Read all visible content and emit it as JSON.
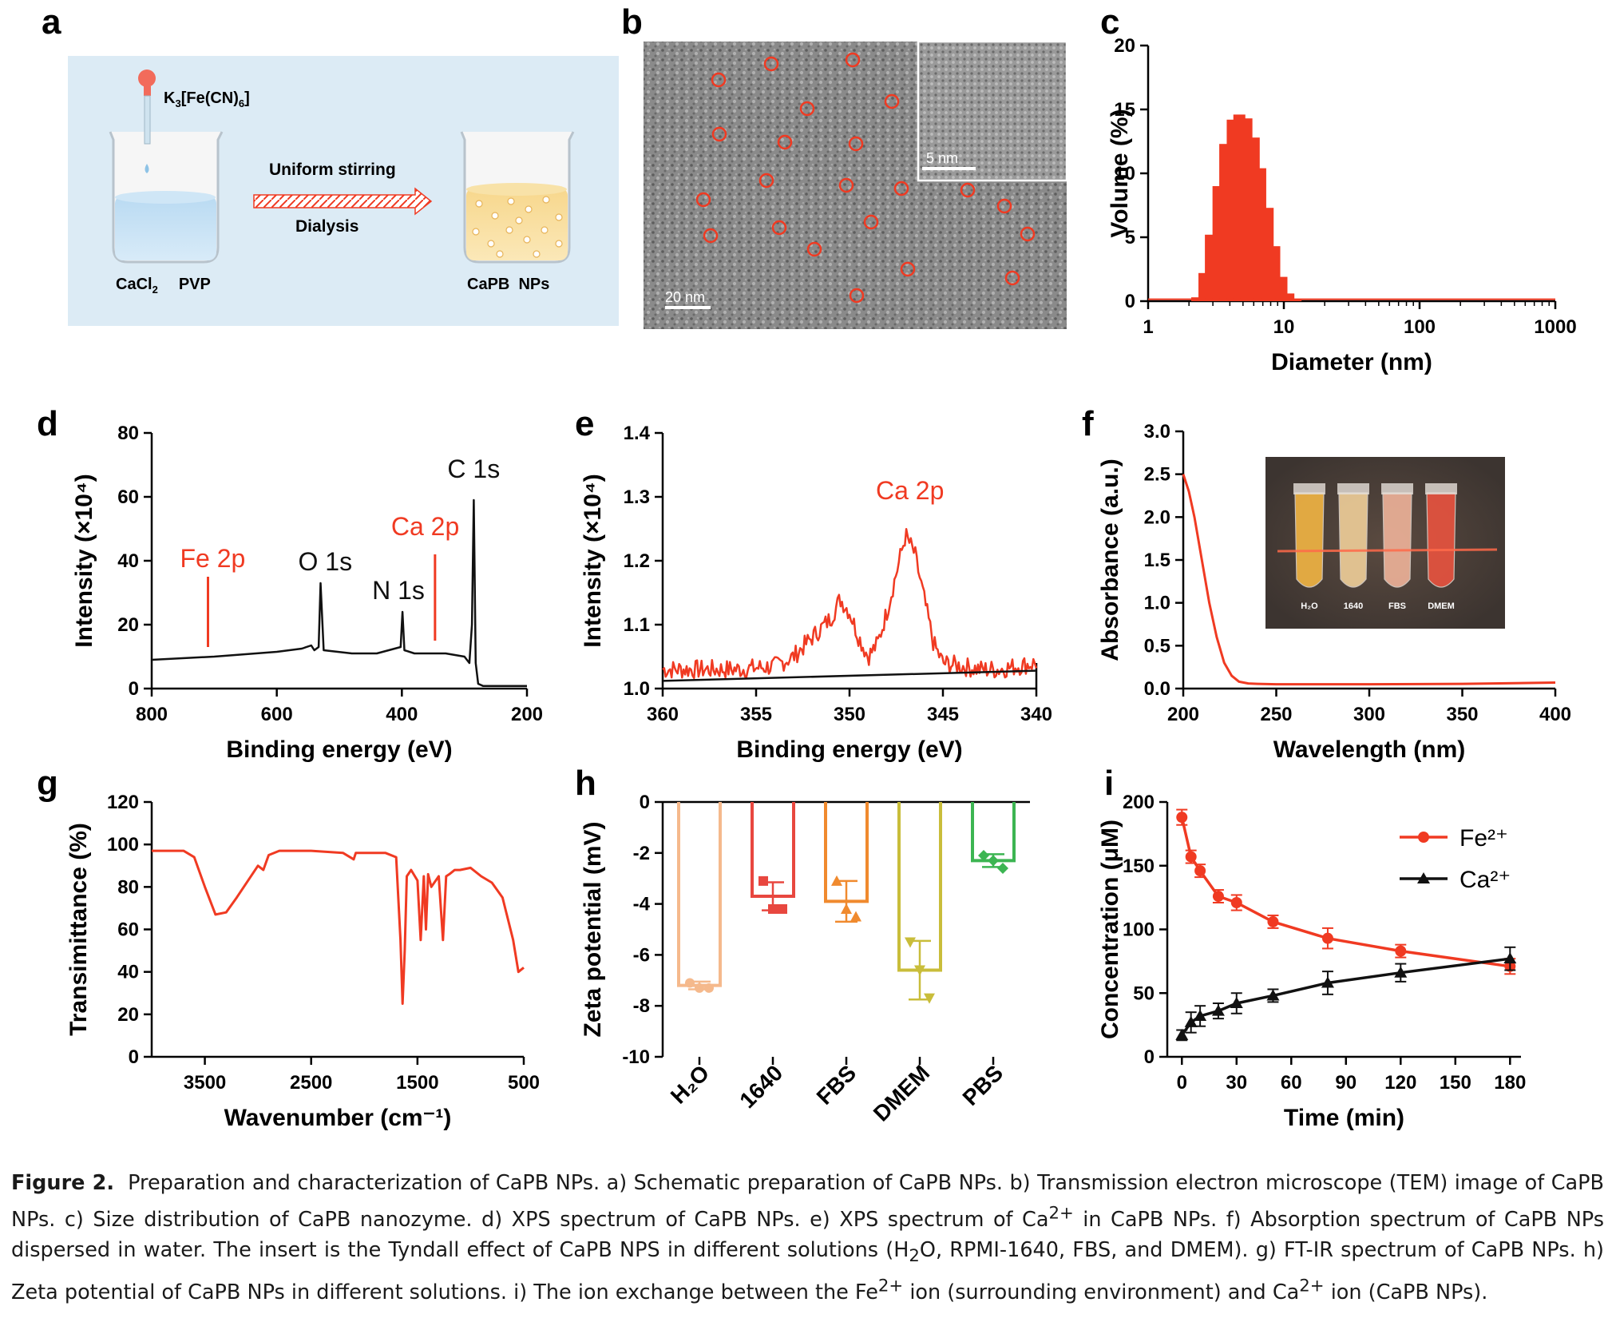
{
  "panel_letters": [
    "a",
    "b",
    "c",
    "d",
    "e",
    "f",
    "g",
    "h",
    "i"
  ],
  "panel_a": {
    "reagent_main": "K",
    "reagent_sub1": "3",
    "reagent_mid": "[Fe(CN)",
    "reagent_sub2": "6",
    "reagent_end": "]",
    "step1": "Uniform stirring",
    "step2": "Dialysis",
    "left_label_main": "CaCl",
    "left_label_sub": "2",
    "left_label_end": "PVP",
    "right_label": "CaPB  NPs"
  },
  "panel_b": {
    "scale_main": "20 nm",
    "scale_inset": "5 nm"
  },
  "colors": {
    "red": "#f03a22",
    "black": "#111111",
    "panel_a_bg": "#dcebf5"
  },
  "chart_data": [
    {
      "panel": "c",
      "type": "bar",
      "xlabel": "Diameter (nm)",
      "ylabel": "Volume (%)",
      "xscale": "log",
      "xlim": [
        1,
        1000
      ],
      "ylim": [
        0,
        20
      ],
      "xticks": [
        "1",
        "10",
        "100",
        "1000"
      ],
      "yticks": [
        "0",
        "5",
        "10",
        "15",
        "20"
      ],
      "x": [
        2.3,
        2.6,
        2.9,
        3.3,
        3.7,
        4.2,
        4.7,
        5.3,
        6.0,
        6.7,
        7.6,
        8.5,
        9.6,
        10.8,
        12.2
      ],
      "values": [
        0.3,
        2.2,
        5.2,
        9.0,
        12.3,
        14.2,
        14.6,
        14.3,
        12.8,
        10.4,
        7.3,
        4.3,
        1.9,
        0.6,
        0.1
      ]
    },
    {
      "panel": "d",
      "type": "line",
      "xlabel": "Binding energy (eV)",
      "ylabel": "Intensity (×10⁴)",
      "xlim": [
        800,
        200
      ],
      "ylim": [
        0,
        80
      ],
      "xticks": [
        "800",
        "600",
        "400",
        "200"
      ],
      "yticks": [
        "0",
        "20",
        "40",
        "60",
        "80"
      ],
      "x": [
        800,
        700,
        600,
        560,
        545,
        540,
        533,
        530,
        525,
        480,
        440,
        402,
        399,
        396,
        380,
        330,
        300,
        292,
        288,
        285,
        282,
        278,
        270,
        200
      ],
      "y": [
        9,
        10,
        11.5,
        12.5,
        13.5,
        12,
        13,
        33,
        12,
        11,
        11,
        13,
        24,
        12,
        11,
        11,
        10,
        8,
        20,
        59,
        8,
        1.5,
        0.8,
        0.8
      ],
      "annotations": [
        {
          "text": "Fe 2p",
          "x": 710,
          "color": "#f03a22",
          "line_from": 13,
          "line_to": 35
        },
        {
          "text": "O 1s",
          "x": 530,
          "color": "#111111"
        },
        {
          "text": "N 1s",
          "x": 399,
          "color": "#111111"
        },
        {
          "text": "Ca 2p",
          "x": 347,
          "color": "#f03a22",
          "line_from": 15,
          "line_to": 42
        },
        {
          "text": "C 1s",
          "x": 285,
          "color": "#111111"
        }
      ]
    },
    {
      "panel": "e",
      "type": "line",
      "xlabel": "Binding energy (eV)",
      "ylabel": "Intensity (×10⁴)",
      "xlim": [
        360,
        340
      ],
      "ylim": [
        1.0,
        1.4
      ],
      "xticks": [
        "360",
        "355",
        "350",
        "345",
        "340"
      ],
      "yticks": [
        "1.0",
        "1.1",
        "1.2",
        "1.3",
        "1.4"
      ],
      "series": [
        {
          "color": "#f03a22",
          "x": [
            360,
            358,
            356,
            354,
            353,
            352,
            351,
            350.5,
            350,
            349.5,
            349,
            348.5,
            348,
            347.5,
            347,
            346.5,
            346,
            345.5,
            345,
            344,
            343,
            342,
            341,
            340
          ],
          "y": [
            1.03,
            1.03,
            1.03,
            1.035,
            1.05,
            1.08,
            1.11,
            1.14,
            1.12,
            1.08,
            1.05,
            1.07,
            1.12,
            1.18,
            1.24,
            1.21,
            1.14,
            1.07,
            1.04,
            1.035,
            1.03,
            1.03,
            1.035,
            1.04
          ]
        },
        {
          "color": "#111111",
          "x": [
            360,
            340
          ],
          "y": [
            1.012,
            1.028
          ]
        }
      ],
      "annotations": [
        {
          "text": "Ca 2p",
          "color": "#f03a22"
        }
      ]
    },
    {
      "panel": "f",
      "type": "line",
      "xlabel": "Wavelength (nm)",
      "ylabel": "Absorbance (a.u.)",
      "xlim": [
        200,
        400
      ],
      "ylim": [
        0,
        3.0
      ],
      "xticks": [
        "200",
        "250",
        "300",
        "350",
        "400"
      ],
      "yticks": [
        "0.0",
        "0.5",
        "1.0",
        "1.5",
        "2.0",
        "2.5",
        "3.0"
      ],
      "x": [
        200,
        203,
        206,
        210,
        214,
        218,
        222,
        226,
        230,
        235,
        240,
        250,
        300,
        350,
        400
      ],
      "y": [
        2.5,
        2.3,
        2.0,
        1.5,
        1.0,
        0.6,
        0.3,
        0.15,
        0.08,
        0.06,
        0.055,
        0.05,
        0.05,
        0.055,
        0.07
      ],
      "inset_labels": [
        "H₂O",
        "1640",
        "FBS",
        "DMEM"
      ]
    },
    {
      "panel": "g",
      "type": "line",
      "xlabel": "Wavenumber (cm⁻¹)",
      "ylabel": "Transimittance (%)",
      "xlim": [
        4000,
        500
      ],
      "ylim": [
        0,
        120
      ],
      "xticks": [
        "3500",
        "2500",
        "1500",
        "500"
      ],
      "yticks": [
        "0",
        "20",
        "40",
        "60",
        "80",
        "100",
        "120"
      ],
      "x": [
        4000,
        3700,
        3600,
        3500,
        3400,
        3300,
        3200,
        3000,
        2950,
        2900,
        2800,
        2500,
        2200,
        2100,
        2080,
        2050,
        1800,
        1700,
        1660,
        1640,
        1620,
        1600,
        1560,
        1500,
        1470,
        1440,
        1420,
        1400,
        1370,
        1300,
        1260,
        1230,
        1200,
        1150,
        1100,
        1000,
        900,
        800,
        700,
        600,
        550,
        500
      ],
      "y": [
        97,
        97,
        94,
        80,
        67,
        68,
        75,
        90,
        88,
        95,
        97,
        97,
        96,
        93,
        96,
        96,
        96,
        94,
        55,
        25,
        50,
        85,
        88,
        83,
        55,
        85,
        60,
        86,
        80,
        85,
        55,
        85,
        86,
        88,
        88,
        89,
        85,
        82,
        75,
        55,
        40,
        42
      ]
    },
    {
      "panel": "h",
      "type": "bar",
      "ylabel": "Zeta potential (mV)",
      "ylim": [
        -10,
        0
      ],
      "yticks": [
        "0",
        "-2",
        "-4",
        "-6",
        "-8",
        "-10"
      ],
      "categories": [
        "H₂O",
        "1640",
        "FBS",
        "DMEM",
        "PBS"
      ],
      "values": [
        -7.2,
        -3.7,
        -3.9,
        -6.6,
        -2.3
      ],
      "errors": [
        0.15,
        0.55,
        0.8,
        1.15,
        0.25
      ],
      "points": [
        [
          -7.1,
          -7.3,
          -7.3
        ],
        [
          -3.1,
          -4.2,
          -4.2
        ],
        [
          -3.1,
          -4.2,
          -4.5
        ],
        [
          -5.5,
          -6.6,
          -7.7
        ],
        [
          -2.1,
          -2.3,
          -2.6
        ]
      ],
      "colors": [
        "#f5b98c",
        "#e8473f",
        "#f08a2e",
        "#c9bd3a",
        "#3cb552"
      ]
    },
    {
      "panel": "i",
      "type": "line",
      "xlabel": "Time (min)",
      "ylabel": "Concentration (μM)",
      "xlim": [
        0,
        180
      ],
      "ylim": [
        0,
        200
      ],
      "xticks": [
        "0",
        "30",
        "60",
        "90",
        "120",
        "150",
        "180"
      ],
      "yticks": [
        "0",
        "50",
        "100",
        "150",
        "200"
      ],
      "legend": "top-right",
      "series": [
        {
          "name": "Fe²⁺",
          "color": "#f03a22",
          "marker": "circle",
          "x": [
            0,
            5,
            10,
            20,
            30,
            50,
            80,
            120,
            180
          ],
          "y": [
            188,
            157,
            146,
            126,
            121,
            106,
            93,
            83,
            71
          ],
          "err": [
            6,
            5,
            5,
            5,
            6,
            5,
            8,
            5,
            6
          ]
        },
        {
          "name": "Ca²⁺",
          "color": "#111111",
          "marker": "triangle",
          "x": [
            0,
            5,
            10,
            20,
            30,
            50,
            80,
            120,
            180
          ],
          "y": [
            17,
            27,
            32,
            36,
            42,
            48,
            58,
            66,
            77
          ],
          "err": [
            4,
            8,
            8,
            6,
            8,
            5,
            9,
            7,
            9
          ]
        }
      ]
    }
  ],
  "caption": {
    "label": "Figure 2.",
    "text": "Preparation and characterization of CaPB NPs. a) Schematic preparation of CaPB NPs. b) Transmission electron microscope (TEM) image of CaPB NPs. c) Size distribution of CaPB nanozyme. d) XPS spectrum of CaPB NPs. e) XPS spectrum of Ca2+ in CaPB NPs. f) Absorption spectrum of CaPB NPs dispersed in water. The insert is the Tyndall effect of CaPB NPS in different solutions (H2O, RPMI-1640, FBS, and DMEM). g) FT-IR spectrum of CaPB NPs. h) Zeta potential of CaPB NPs in different solutions. i) The ion exchange between the Fe2+ ion (surrounding environment) and Ca2+ ion (CaPB NPs).",
    "parts": [
      "Preparation and characterization of CaPB NPs. a) Schematic preparation of CaPB NPs. b) Transmission electron microscope (TEM) image of CaPB NPs. c) Size distribution of CaPB nanozyme. d) XPS spectrum of CaPB NPs. e) XPS spectrum of Ca",
      "2+",
      " in CaPB NPs. f) Absorption spectrum of CaPB NPs dispersed in water. The insert is the Tyndall effect of CaPB NPS in different solutions (H",
      "2",
      "O, RPMI-1640, FBS, and DMEM). g) FT-IR spectrum of CaPB NPs. h) Zeta potential of CaPB NPs in different solutions. i) The ion exchange between the Fe",
      "2+",
      " ion (surrounding environment) and Ca",
      "2+",
      " ion (CaPB NPs)."
    ]
  }
}
